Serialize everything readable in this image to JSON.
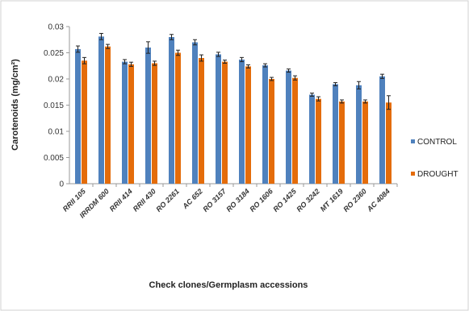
{
  "chart_data": {
    "type": "bar",
    "title": "",
    "xlabel": "Check clones/Germplasm accessions",
    "ylabel": "Carotenoids (mg/cm²)",
    "ylim": [
      0,
      0.03
    ],
    "yticks": [
      "0",
      "0.005",
      "0.01",
      "0.015",
      "0.02",
      "0.025",
      "0.03"
    ],
    "grid": false,
    "legend_position": "right",
    "categories": [
      "RRII 105",
      "IRRDM 600",
      "RRII 414",
      "RRII 430",
      "RO 2261",
      "AC 652",
      "RO 3157",
      "RO 3184",
      "RO 1606",
      "RO 1425",
      "RO 3242",
      "MT 1619",
      "RO 2360",
      "AC 4084"
    ],
    "series": [
      {
        "name": "CONTROL",
        "color": "#4f81bd",
        "values": [
          0.0257,
          0.0281,
          0.0233,
          0.026,
          0.028,
          0.027,
          0.0247,
          0.0237,
          0.0226,
          0.0216,
          0.017,
          0.019,
          0.0188,
          0.0205
        ],
        "errors": [
          0.0006,
          0.0006,
          0.0004,
          0.0011,
          0.0005,
          0.0005,
          0.0004,
          0.0004,
          0.0003,
          0.0003,
          0.0003,
          0.0003,
          0.0007,
          0.0004
        ]
      },
      {
        "name": "DROUGHT",
        "color": "#e46c0a",
        "values": [
          0.0235,
          0.0262,
          0.0228,
          0.023,
          0.025,
          0.024,
          0.0233,
          0.0224,
          0.02,
          0.0202,
          0.0162,
          0.0157,
          0.0157,
          0.0155
        ],
        "errors": [
          0.0006,
          0.0004,
          0.0004,
          0.0004,
          0.0005,
          0.0006,
          0.0003,
          0.0003,
          0.0003,
          0.0004,
          0.0004,
          0.0003,
          0.0003,
          0.0013
        ]
      }
    ]
  }
}
